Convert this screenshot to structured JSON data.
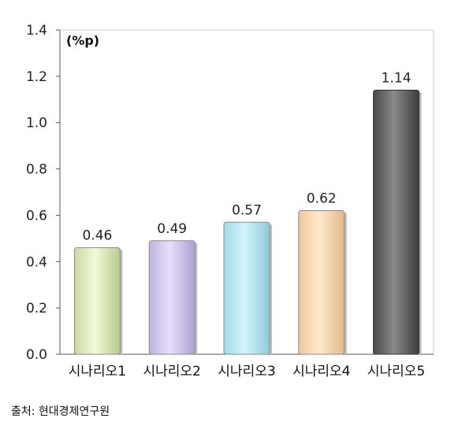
{
  "chart_data": {
    "type": "bar",
    "unit": "(%p)",
    "categories": [
      "시나리오1",
      "시나리오2",
      "시나리오3",
      "시나리오4",
      "시나리오5"
    ],
    "values": [
      0.46,
      0.49,
      0.57,
      0.62,
      1.14
    ],
    "value_labels": [
      "0.46",
      "0.49",
      "0.57",
      "0.62",
      "1.14"
    ],
    "ylim": [
      0,
      1.4
    ],
    "yticks": [
      "0.0",
      "0.2",
      "0.4",
      "0.6",
      "0.8",
      "1.0",
      "1.2",
      "1.4"
    ],
    "colors": [
      "#ecf5c8",
      "#dcd3f1",
      "#c6eef8",
      "#fde0bc",
      "#777777"
    ],
    "grid": false
  },
  "source": "출처: 현대경제연구원"
}
